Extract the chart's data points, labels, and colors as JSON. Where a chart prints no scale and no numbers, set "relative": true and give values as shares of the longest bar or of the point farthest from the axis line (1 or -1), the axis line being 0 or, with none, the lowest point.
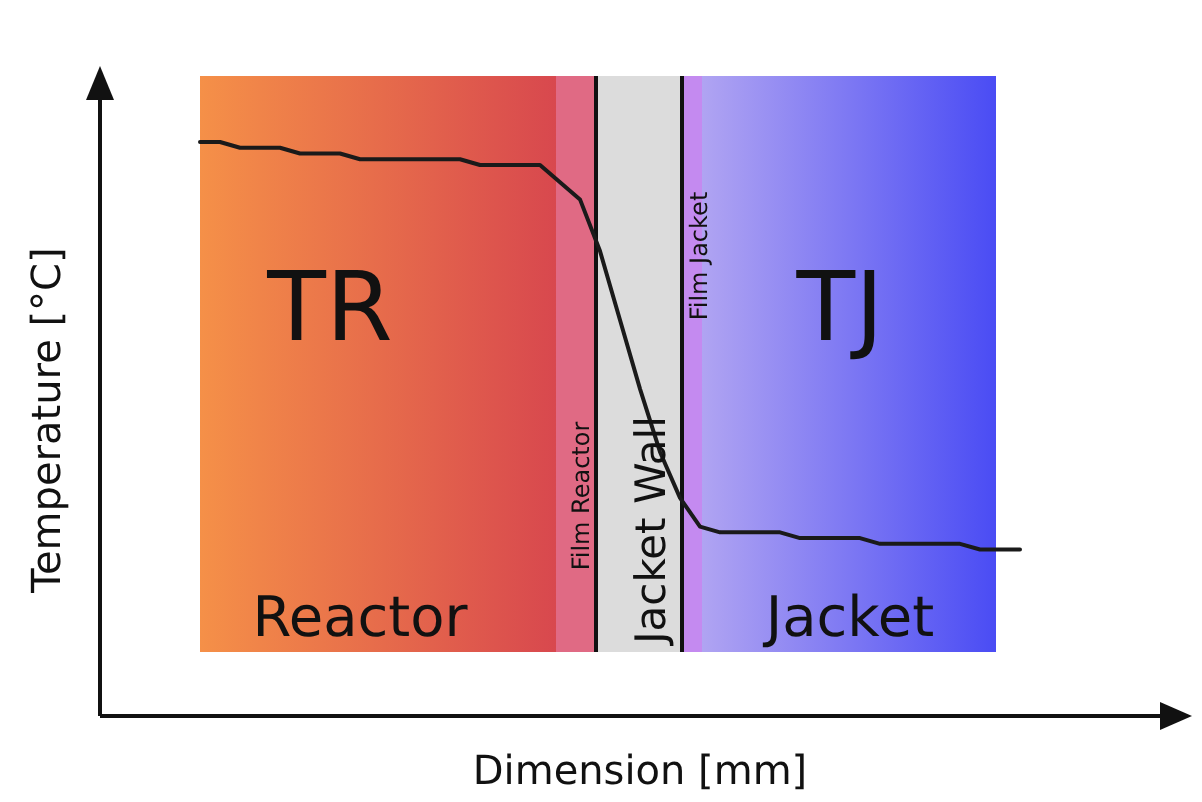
{
  "chart_data": {
    "type": "line",
    "xlabel": "Dimension [mm]",
    "ylabel": "Temperature [°C]",
    "relative": true,
    "tick_labels": false,
    "categories": [
      null,
      null,
      null,
      null,
      null,
      null,
      null,
      null,
      null,
      null,
      null,
      null,
      null,
      null,
      null,
      null,
      null,
      null,
      null,
      null,
      null,
      null,
      null,
      null,
      null,
      null,
      null,
      null,
      null,
      null,
      null,
      null,
      null,
      null,
      null,
      null,
      null,
      null,
      null,
      null,
      null,
      null
    ],
    "series": [
      {
        "color": "#1a1a1a",
        "values": [
          1.0,
          1.0,
          0.99,
          0.99,
          0.99,
          0.98,
          0.98,
          0.98,
          0.97,
          0.97,
          0.97,
          0.97,
          0.97,
          0.97,
          0.96,
          0.96,
          0.96,
          0.96,
          0.93,
          0.9,
          0.81,
          0.69,
          0.57,
          0.46,
          0.38,
          0.33,
          0.32,
          0.32,
          0.32,
          0.32,
          0.31,
          0.31,
          0.31,
          0.31,
          0.3,
          0.3,
          0.3,
          0.3,
          0.3,
          0.29,
          0.29,
          0.29
        ]
      }
    ],
    "annotations": [
      "TR",
      "TJ",
      "Reactor",
      "Jacket Wall",
      "Jacket",
      "Film Reactor",
      "Film Jacket"
    ]
  }
}
